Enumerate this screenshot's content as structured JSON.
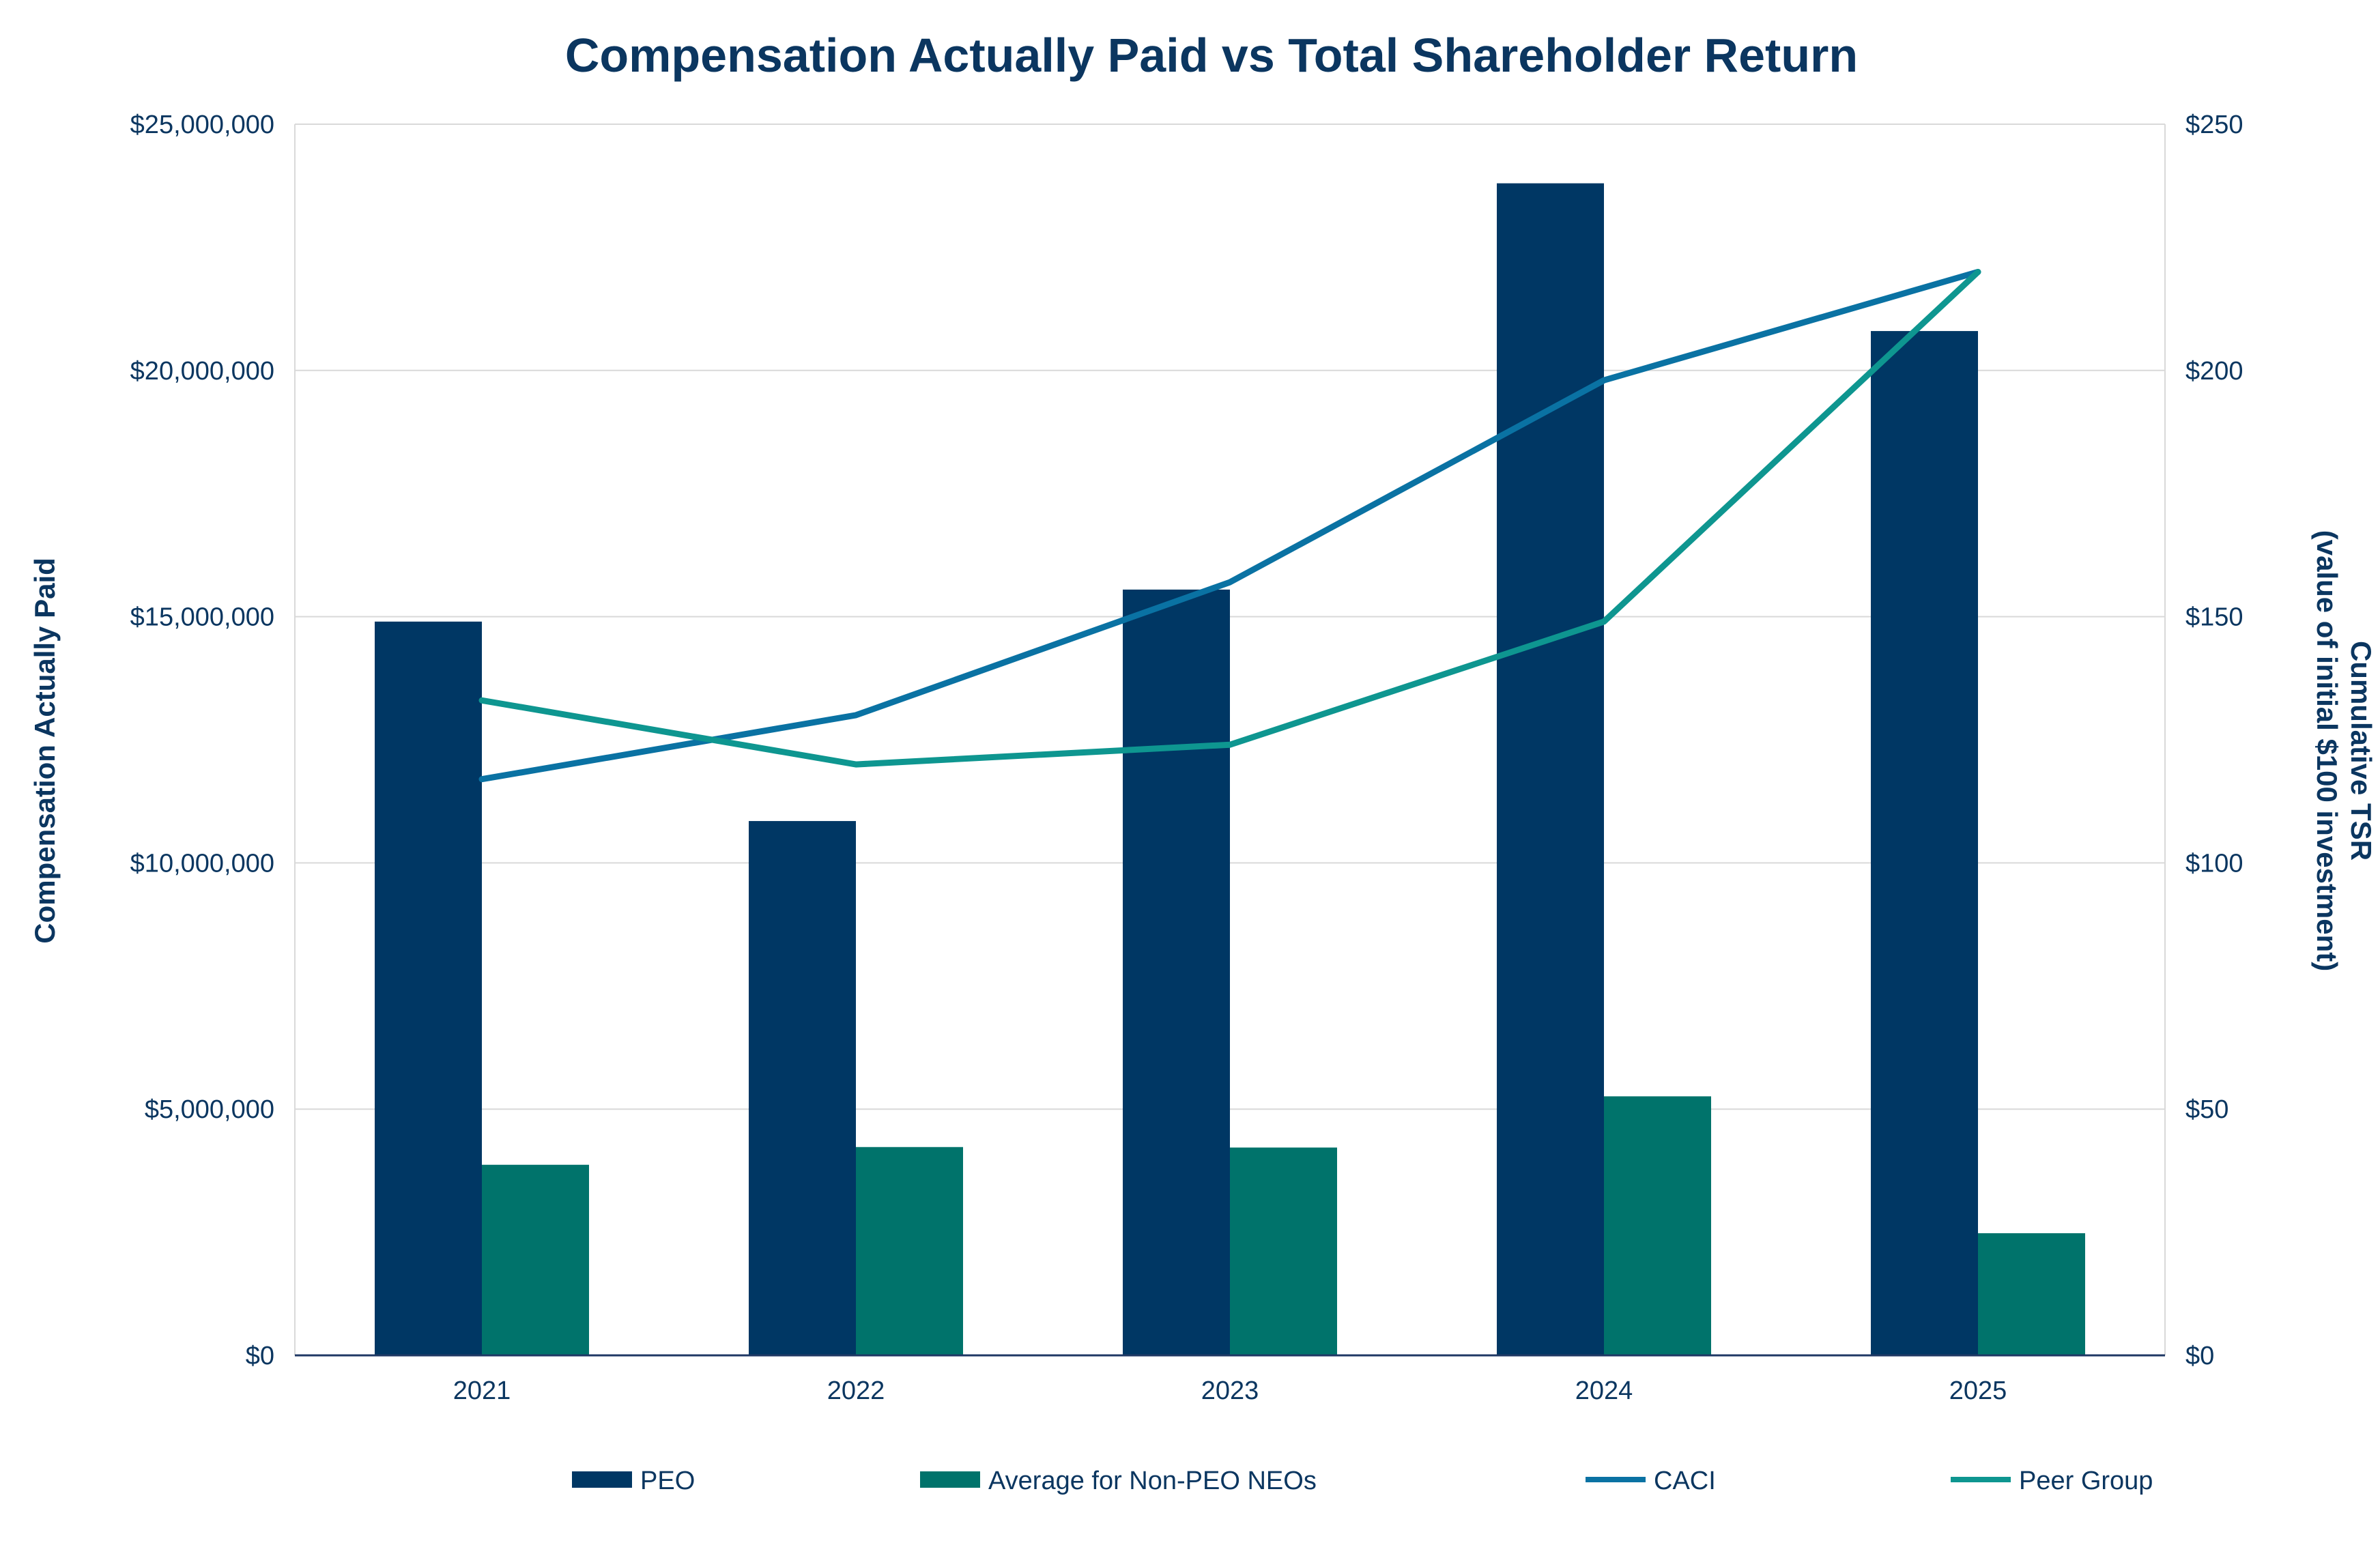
{
  "chart_data": {
    "type": "bar",
    "title": "Compensation Actually Paid vs Total Shareholder Return",
    "categories": [
      "2021",
      "2022",
      "2023",
      "2024",
      "2025"
    ],
    "ylabel": "Compensation Actually Paid",
    "y2label_line1": "Cumulative TSR",
    "y2label_line2": "(value of initial $100 investment)",
    "ylim": [
      0,
      25000000
    ],
    "y2lim": [
      0,
      250
    ],
    "yticks": [
      "$0",
      "$5,000,000",
      "$10,000,000",
      "$15,000,000",
      "$20,000,000",
      "$25,000,000"
    ],
    "y2ticks": [
      "$0",
      "$50",
      "$100",
      "$150",
      "$200",
      "$250"
    ],
    "grid": true,
    "legend_position": "bottom",
    "bar_series": [
      {
        "name": "PEO",
        "color": "#003764",
        "values": [
          14900000,
          10850000,
          15550000,
          23800000,
          20800000
        ]
      },
      {
        "name": "Average for Non-PEO NEOs",
        "color": "#00736b",
        "values": [
          3870000,
          4230000,
          4220000,
          5260000,
          2480000
        ]
      }
    ],
    "line_series": [
      {
        "name": "CACI",
        "color": "#0a72a3",
        "axis": "right",
        "values": [
          117,
          130,
          157,
          198,
          220
        ]
      },
      {
        "name": "Peer Group",
        "color": "#0e9690",
        "axis": "right",
        "values": [
          133,
          120,
          124,
          149,
          220
        ]
      }
    ]
  }
}
